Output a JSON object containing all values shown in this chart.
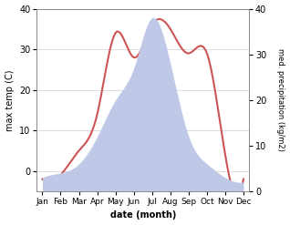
{
  "months": [
    "Jan",
    "Feb",
    "Mar",
    "Apr",
    "May",
    "Jun",
    "Jul",
    "Aug",
    "Sep",
    "Oct",
    "Nov",
    "Dec"
  ],
  "temp_max": [
    -2,
    -1,
    5,
    14,
    34,
    28,
    36,
    35,
    29,
    29,
    4,
    -2
  ],
  "precip": [
    3,
    4,
    6,
    12,
    20,
    27,
    38,
    28,
    12,
    6,
    3,
    2
  ],
  "temp_color": "#cd5555",
  "precip_fill_color": "#c0c8e8",
  "temp_ylim": [
    -5,
    40
  ],
  "precip_ylim": [
    0,
    40
  ],
  "temp_yticks": [
    0,
    10,
    20,
    30,
    40
  ],
  "precip_yticks": [
    0,
    10,
    20,
    30,
    40
  ],
  "ylabel_left": "max temp (C)",
  "ylabel_right": "med. precipitation (kg/m2)",
  "xlabel": "date (month)",
  "bg_color": "#ffffff"
}
